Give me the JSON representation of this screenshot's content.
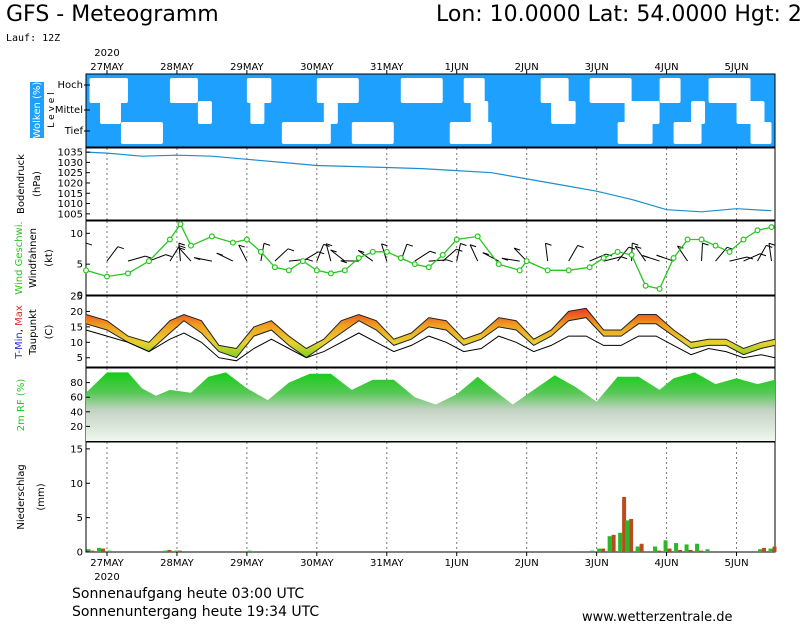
{
  "header": {
    "title": "GFS - Meteogramm",
    "coords": "Lon: 10.0000 Lat: 54.0000 Hgt: 2",
    "run": "Lauf: 12Z"
  },
  "footer": {
    "sunrise": "Sonnenaufgang heute 03:00 UTC",
    "sunset": "Sonnenuntergang heute 19:34 UTC",
    "website": "www.wetterzentrale.de"
  },
  "colors": {
    "cloud_sky": "#1ea0ff",
    "pressure": "#1a8fd0",
    "wind_speed": "#27c61e",
    "temp_max": "#e4281e",
    "temp_min": "#2030e0",
    "humidity": "#1ecc1e",
    "precip_rain": "#2ab82a",
    "precip_conv": "#b84c1e"
  },
  "chart_data": {
    "type": "meteogram",
    "year": "2020",
    "date_labels": [
      "27MAY",
      "28MAY",
      "29MAY",
      "30MAY",
      "31MAY",
      "1JUN",
      "2JUN",
      "3JUN",
      "4JUN",
      "5JUN"
    ],
    "x_unit": "days since 27MAY 00UTC",
    "x_range": [
      -0.3,
      9.55
    ],
    "panels": [
      {
        "id": "clouds",
        "ylabel": "Wolken (%)",
        "level_label": "Level",
        "levels": [
          "Hoch",
          "Mittel",
          "Tief"
        ],
        "type": "cloud-bands",
        "bands": {
          "Hoch": [
            [
              -0.25,
              0.3
            ],
            [
              0.9,
              1.3
            ],
            [
              2.0,
              2.35
            ],
            [
              3.0,
              3.6
            ],
            [
              4.2,
              4.8
            ],
            [
              5.1,
              5.4
            ],
            [
              6.2,
              6.6
            ],
            [
              6.9,
              7.5
            ],
            [
              7.9,
              8.2
            ],
            [
              8.6,
              9.2
            ]
          ],
          "Mittel": [
            [
              -0.1,
              0.2
            ],
            [
              1.3,
              1.5
            ],
            [
              2.05,
              2.25
            ],
            [
              3.1,
              3.3
            ],
            [
              5.2,
              5.45
            ],
            [
              6.35,
              6.7
            ],
            [
              7.4,
              7.9
            ],
            [
              8.35,
              8.55
            ],
            [
              9.0,
              9.4
            ]
          ],
          "Tief": [
            [
              0.2,
              0.8
            ],
            [
              2.5,
              3.2
            ],
            [
              3.5,
              4.1
            ],
            [
              4.9,
              5.5
            ],
            [
              7.3,
              7.8
            ],
            [
              8.1,
              8.5
            ],
            [
              9.2,
              9.5
            ]
          ]
        }
      },
      {
        "id": "pressure",
        "ylabel": "Bodendruck",
        "unit": "(hPa)",
        "type": "line",
        "ylim": [
          1002,
          1037
        ],
        "ticks": [
          1005,
          1010,
          1015,
          1020,
          1025,
          1030,
          1035
        ],
        "x": [
          -0.3,
          0,
          0.5,
          1,
          1.5,
          2,
          2.5,
          3,
          3.5,
          4,
          4.5,
          5,
          5.5,
          6,
          6.5,
          7,
          7.5,
          8,
          8.5,
          9,
          9.5
        ],
        "values": [
          1035,
          1034.5,
          1033,
          1033.5,
          1033,
          1031.5,
          1030,
          1028.5,
          1028,
          1027.5,
          1027,
          1026,
          1025,
          1022,
          1019,
          1016,
          1012,
          1007,
          1006,
          1007.5,
          1006.5
        ]
      },
      {
        "id": "wind",
        "ylabel": "Wind Geschwi.",
        "ylabel2": "Windfahnen",
        "unit": "(kt)",
        "type": "line-with-barbs",
        "ylim": [
          0,
          12
        ],
        "ticks": [
          0,
          5,
          10
        ],
        "barb_level": 5.5,
        "x": [
          -0.3,
          0,
          0.3,
          0.6,
          0.9,
          1.05,
          1.2,
          1.5,
          1.8,
          2.0,
          2.2,
          2.4,
          2.6,
          2.8,
          3.0,
          3.2,
          3.4,
          3.6,
          3.8,
          4.0,
          4.2,
          4.4,
          4.6,
          4.8,
          5.0,
          5.3,
          5.6,
          5.9,
          6.0,
          6.3,
          6.6,
          6.9,
          7.1,
          7.3,
          7.5,
          7.7,
          7.9,
          8.1,
          8.3,
          8.5,
          8.7,
          8.9,
          9.1,
          9.3,
          9.5
        ],
        "values": [
          4,
          3,
          3.5,
          5.5,
          9,
          11.5,
          8,
          9.5,
          8.5,
          9,
          7,
          4.5,
          4,
          5.5,
          4,
          3.5,
          4,
          6,
          7,
          7,
          6,
          5,
          4.5,
          6.5,
          9,
          9.5,
          5,
          4,
          5.5,
          4,
          4,
          4.5,
          6,
          7,
          6.5,
          1.5,
          1,
          6,
          9,
          9,
          8,
          7,
          9,
          10.5,
          11
        ]
      },
      {
        "id": "temperature",
        "ylabel": "T-Min, Max",
        "ylabel_parts": [
          "T-Min",
          ", ",
          "Max"
        ],
        "ylabel2": "Taupunkt",
        "unit": "(C)",
        "type": "temp-band",
        "ylim": [
          2,
          25
        ],
        "ticks": [
          5,
          10,
          15,
          20,
          25
        ],
        "x": [
          -0.3,
          0,
          0.3,
          0.6,
          0.9,
          1.1,
          1.35,
          1.6,
          1.85,
          2.1,
          2.35,
          2.6,
          2.85,
          3.1,
          3.35,
          3.6,
          3.85,
          4.1,
          4.35,
          4.6,
          4.85,
          5.1,
          5.35,
          5.6,
          5.85,
          6.1,
          6.35,
          6.6,
          6.85,
          7.1,
          7.35,
          7.6,
          7.85,
          8.1,
          8.35,
          8.6,
          8.85,
          9.1,
          9.35,
          9.55
        ],
        "tmax": [
          19,
          17,
          12,
          10,
          17,
          19,
          17,
          9,
          8,
          15,
          17,
          12,
          8,
          11,
          17,
          19,
          17,
          11,
          13,
          18,
          17,
          11,
          13,
          18,
          17,
          11,
          14,
          20,
          21,
          14,
          14,
          19,
          19,
          14,
          10,
          11,
          11,
          8,
          10,
          11
        ],
        "tmin": [
          16,
          14,
          10,
          7,
          13,
          17,
          13,
          7,
          5,
          12,
          14,
          9,
          5,
          9,
          13,
          17,
          14,
          9,
          11,
          15,
          14,
          9,
          11,
          15,
          14,
          9,
          12,
          17,
          18,
          12,
          12,
          16,
          16,
          12,
          8,
          9,
          9,
          6,
          8,
          9
        ],
        "dewpoint": [
          14,
          12,
          10,
          7,
          11,
          13,
          10,
          5,
          4,
          8,
          11,
          8,
          5,
          7,
          10,
          13,
          10,
          7,
          9,
          12,
          10,
          7,
          8,
          12,
          10,
          7,
          9,
          12,
          12,
          9,
          9,
          12,
          12,
          9,
          6,
          8,
          7,
          5,
          6,
          5
        ]
      },
      {
        "id": "humidity",
        "ylabel": "2m RF (%)",
        "type": "area",
        "ylim": [
          0,
          100
        ],
        "ticks": [
          20,
          40,
          60,
          80
        ],
        "x": [
          -0.3,
          0,
          0.3,
          0.5,
          0.7,
          0.9,
          1.2,
          1.45,
          1.7,
          2.0,
          2.3,
          2.6,
          2.9,
          3.2,
          3.5,
          3.8,
          4.1,
          4.4,
          4.7,
          5.0,
          5.3,
          5.5,
          5.8,
          6.1,
          6.4,
          6.7,
          7.0,
          7.3,
          7.6,
          7.9,
          8.1,
          8.4,
          8.7,
          9.0,
          9.3,
          9.55
        ],
        "values": [
          66,
          94,
          94,
          72,
          62,
          70,
          66,
          88,
          94,
          72,
          56,
          80,
          92,
          92,
          70,
          84,
          84,
          60,
          50,
          64,
          88,
          72,
          50,
          70,
          90,
          74,
          54,
          88,
          88,
          70,
          86,
          94,
          78,
          86,
          78,
          84
        ]
      },
      {
        "id": "precip",
        "ylabel": "Niederschlag",
        "unit": "(mm)",
        "type": "bar",
        "ylim": [
          0,
          16
        ],
        "ticks": [
          0,
          5,
          10,
          15
        ],
        "x": [
          -0.25,
          -0.1,
          0.05,
          0.85,
          1.0,
          2.05,
          6.95,
          7.05,
          7.2,
          7.35,
          7.45,
          7.6,
          7.85,
          8.0,
          8.15,
          8.3,
          8.45,
          8.6,
          9.35,
          9.5
        ],
        "rain": [
          0.4,
          0.6,
          0.2,
          0.2,
          0.2,
          0.2,
          0.2,
          0.5,
          2.3,
          2.8,
          4.6,
          0.8,
          0.8,
          1.7,
          1.3,
          1.1,
          1.2,
          0.4,
          0.4,
          0.5
        ],
        "conv": [
          0.2,
          0.5,
          0,
          0.3,
          0.2,
          0,
          0,
          0.5,
          2.5,
          8.0,
          4.8,
          1.2,
          0.2,
          0.5,
          0.3,
          0.3,
          0.2,
          0,
          0.6,
          0.8
        ]
      }
    ]
  }
}
